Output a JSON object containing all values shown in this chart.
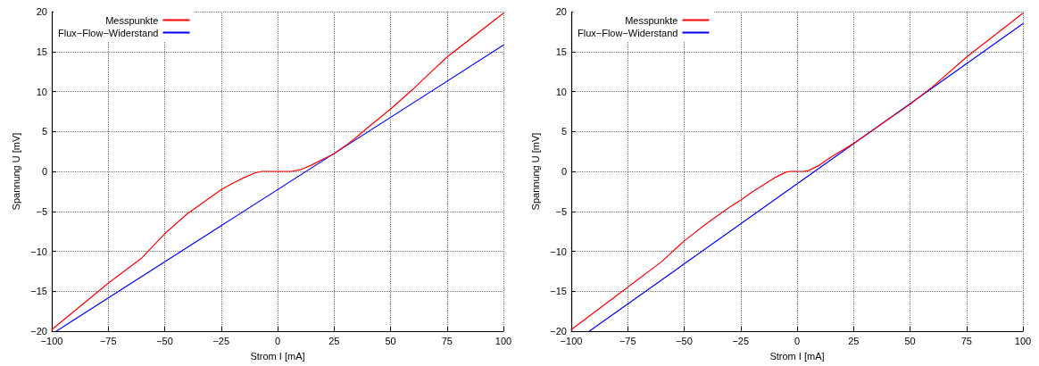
{
  "chart_data": [
    {
      "type": "line",
      "xlabel": "Strom I [mA]",
      "ylabel": "Spannung U [mV]",
      "xlim": [
        -100,
        100
      ],
      "xticks": [
        -100,
        -75,
        -50,
        -25,
        0,
        25,
        50,
        75,
        100
      ],
      "ylim": [
        -20,
        20
      ],
      "yticks": [
        -20,
        -15,
        -10,
        -5,
        0,
        5,
        10,
        15,
        20
      ],
      "grid": true,
      "legend": "top left",
      "marker": "none",
      "line_style": "solid",
      "series": [
        {
          "name": "Messpunkte",
          "color": "#ff0000",
          "x": [
            -100,
            -75,
            -60,
            -50,
            -40,
            -30,
            -25,
            -20,
            -15,
            -10,
            -7,
            0,
            6,
            10,
            15,
            20,
            25,
            30,
            35,
            40,
            50,
            60,
            67,
            75,
            100
          ],
          "values": [
            -19.8,
            -14,
            -10.8,
            -7.8,
            -5.3,
            -3.3,
            -2.3,
            -1.5,
            -0.8,
            -0.2,
            0,
            0,
            0,
            0.2,
            0.8,
            1.5,
            2.2,
            3.2,
            4.3,
            5.5,
            7.8,
            10.3,
            12.2,
            14.3,
            19.8
          ]
        },
        {
          "name": "Flux−Flow−Widerstand",
          "color": "#0000ff",
          "x": [
            -98,
            100
          ],
          "values": [
            -20,
            15.8
          ]
        }
      ]
    },
    {
      "type": "line",
      "xlabel": "Strom I [mA]",
      "ylabel": "Spannung U [mV]",
      "xlim": [
        -100,
        100
      ],
      "xticks": [
        -100,
        -75,
        -50,
        -25,
        0,
        25,
        50,
        75,
        100
      ],
      "ylim": [
        -20,
        20
      ],
      "yticks": [
        -20,
        -15,
        -10,
        -5,
        0,
        5,
        10,
        15,
        20
      ],
      "grid": true,
      "legend": "top left",
      "marker": "none",
      "line_style": "solid",
      "series": [
        {
          "name": "Messpunkte",
          "color": "#ff0000",
          "x": [
            -100,
            -75,
            -60,
            -50,
            -40,
            -30,
            -25,
            -20,
            -15,
            -10,
            -5,
            -3,
            3,
            5,
            10,
            15,
            25,
            50,
            60,
            75,
            100
          ],
          "values": [
            -19.8,
            -14.5,
            -11.3,
            -8.7,
            -6.5,
            -4.5,
            -3.6,
            -2.6,
            -1.7,
            -0.8,
            -0.1,
            0,
            0,
            0.1,
            0.8,
            1.8,
            3.5,
            8.4,
            10.6,
            14.3,
            19.8
          ]
        },
        {
          "name": "Flux−Flow−Widerstand",
          "color": "#0000ff",
          "x": [
            -92,
            100
          ],
          "values": [
            -20,
            18.5
          ]
        }
      ]
    }
  ]
}
